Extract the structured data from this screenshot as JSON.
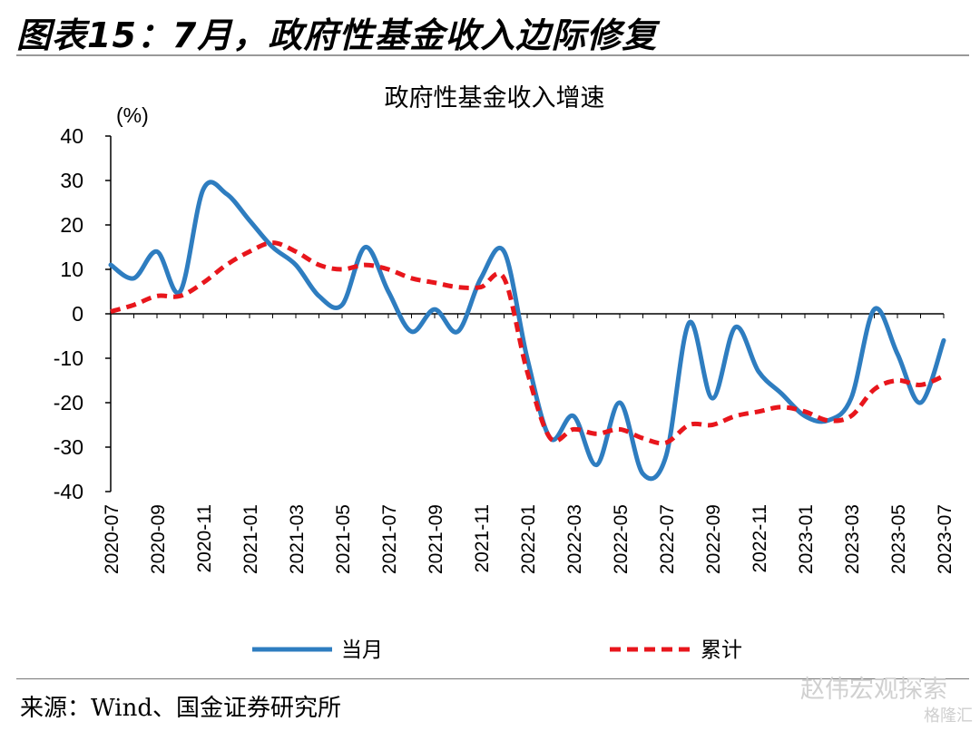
{
  "figure_title": "图表15：7月，政府性基金收入边际修复",
  "source": "来源：Wind、国金证券研究所",
  "watermark": "赵伟宏观探索",
  "watermark2": "格隆汇",
  "colors": {
    "monthly": "#2E7DC0",
    "cumulative": "#E8161C"
  },
  "chart_data": {
    "type": "line",
    "title": "政府性基金收入增速",
    "unit_label": "(%)",
    "xlabel": "",
    "ylabel": "",
    "ylim": [
      -40,
      40
    ],
    "yticks": [
      40,
      30,
      20,
      10,
      0,
      -10,
      -20,
      -30,
      -40
    ],
    "x": [
      "2020-07",
      "2020-08",
      "2020-09",
      "2020-10",
      "2020-11",
      "2020-12",
      "2021-01",
      "2021-02",
      "2021-03",
      "2021-04",
      "2021-05",
      "2021-06",
      "2021-07",
      "2021-08",
      "2021-09",
      "2021-10",
      "2021-11",
      "2021-12",
      "2022-01",
      "2022-02",
      "2022-03",
      "2022-04",
      "2022-05",
      "2022-06",
      "2022-07",
      "2022-08",
      "2022-09",
      "2022-10",
      "2022-11",
      "2022-12",
      "2023-01",
      "2023-02",
      "2023-03",
      "2023-04",
      "2023-05",
      "2023-06",
      "2023-07"
    ],
    "xtick_labels": [
      "2020-07",
      "2020-09",
      "2020-11",
      "2021-01",
      "2021-03",
      "2021-05",
      "2021-07",
      "2021-09",
      "2021-11",
      "2022-01",
      "2022-03",
      "2022-05",
      "2022-07",
      "2022-09",
      "2022-11",
      "2023-01",
      "2023-03",
      "2023-05",
      "2023-07"
    ],
    "legend_position": "bottom",
    "series": [
      {
        "name": "当月",
        "style": "solid",
        "values": [
          11,
          8,
          14,
          5,
          28,
          27,
          21,
          15,
          11,
          4,
          2,
          15,
          5,
          -4,
          1,
          -4,
          8,
          14,
          -10,
          -28,
          -23,
          -34,
          -20,
          -36,
          -32,
          -2,
          -19,
          -3,
          -13,
          -18,
          -23,
          -24,
          -19,
          1,
          -9,
          -20,
          -6
        ]
      },
      {
        "name": "累计",
        "style": "dashed",
        "values": [
          0.5,
          2,
          4,
          4,
          7,
          11,
          14,
          16,
          14,
          11,
          10,
          11,
          10,
          8,
          7,
          6,
          6,
          8,
          -13,
          -28,
          -26,
          -27,
          -26,
          -28,
          -29,
          -25,
          -25,
          -23,
          -22,
          -21,
          -22,
          -24,
          -23,
          -17,
          -15,
          -16,
          -14
        ]
      }
    ]
  }
}
